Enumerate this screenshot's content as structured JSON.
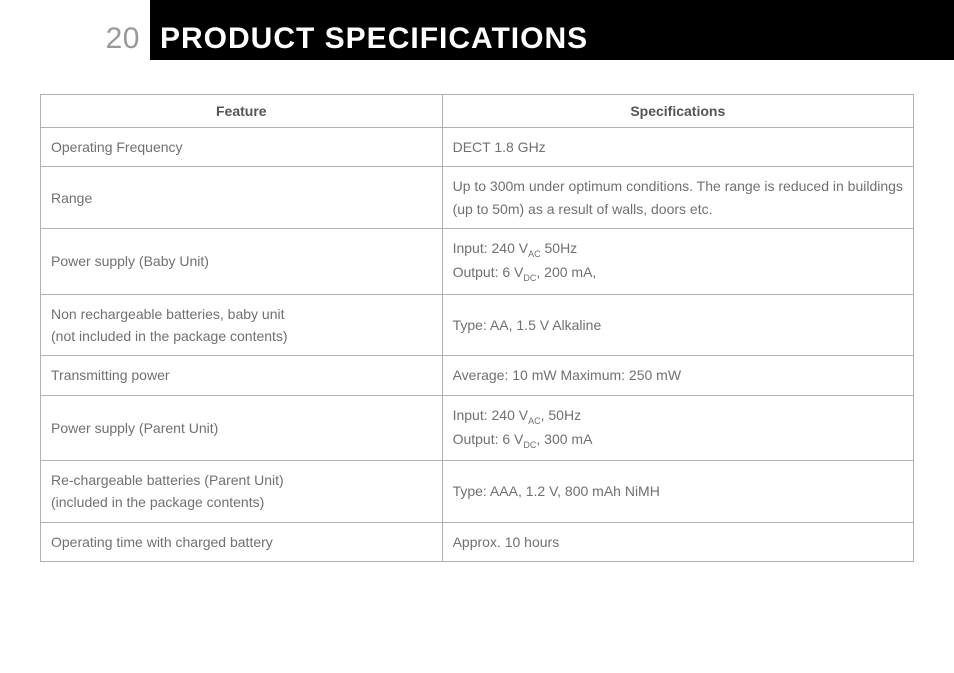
{
  "header": {
    "page_number": "20",
    "title": "PRODUCT SPECIFICATIONS"
  },
  "table": {
    "columns": [
      "Feature",
      "Specifications"
    ],
    "column_widths": [
      "46%",
      "54%"
    ],
    "border_color": "#b0b0b0",
    "header_text_color": "#555555",
    "cell_text_color": "#707070",
    "font_size": 14,
    "rows": [
      {
        "feature": "Operating Frequency",
        "spec": "DECT 1.8 GHz"
      },
      {
        "feature": "Range",
        "spec": "Up to 300m under optimum conditions. The range is reduced in buildings (up to 50m) as a result of walls, doors etc."
      },
      {
        "feature": "Power supply (Baby Unit)",
        "spec_lines": [
          {
            "prefix": "Input: 240 V",
            "sub": "AC",
            "suffix": " 50Hz"
          },
          {
            "prefix": "Output: 6 V",
            "sub": "DC",
            "suffix": ", 200 mA,"
          }
        ]
      },
      {
        "feature_lines": [
          "Non rechargeable batteries, baby unit",
          "(not included in the package contents)"
        ],
        "spec": "Type: AA, 1.5 V Alkaline"
      },
      {
        "feature": "Transmitting power",
        "spec": "Average: 10 mW Maximum: 250 mW"
      },
      {
        "feature": "Power supply (Parent Unit)",
        "spec_lines": [
          {
            "prefix": "Input: 240 V",
            "sub": "AC",
            "suffix": ", 50Hz"
          },
          {
            "prefix": "Output: 6 V",
            "sub": "DC",
            "suffix": ", 300 mA"
          }
        ]
      },
      {
        "feature_lines": [
          "Re-chargeable batteries (Parent Unit)",
          "(included in the package contents)"
        ],
        "spec": "Type: AAA, 1.2 V, 800 mAh NiMH"
      },
      {
        "feature": "Operating time with charged battery",
        "spec": "Approx. 10 hours"
      }
    ]
  },
  "colors": {
    "header_bg": "#000000",
    "page_number_color": "#999999",
    "title_color": "#ffffff",
    "page_bg": "#ffffff"
  }
}
